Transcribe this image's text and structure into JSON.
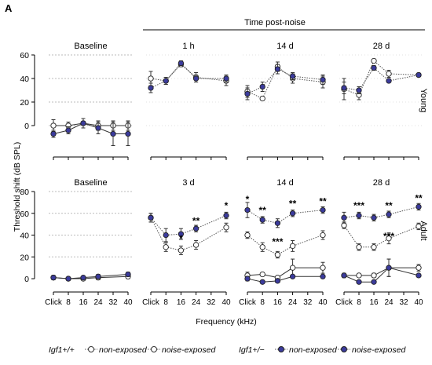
{
  "panel_label": "A",
  "header": "Time post-noise",
  "ylabel": "Threshold shift (dB SPL)",
  "xlabel": "Frequency (kHz)",
  "x_ticks": [
    "Click",
    "8",
    "16",
    "24",
    "32",
    "40"
  ],
  "legend": {
    "wt_genotype": "Igf1+/+",
    "het_genotype": "Igf1+/−",
    "non_exposed": "non-exposed",
    "noise_exposed": "noise-exposed"
  },
  "colors": {
    "het": "#3b3b9c",
    "wt": "#ffffff",
    "dotted_line": "#555555",
    "grid": "#bbbbbb"
  },
  "chart_data": [
    {
      "type": "line",
      "row_label": "Young",
      "ylim": [
        -20,
        60
      ],
      "yticks": [
        0,
        20,
        40,
        60
      ],
      "panels": [
        {
          "title": "Baseline",
          "x": [
            "Click",
            "8",
            "16",
            "24",
            "32",
            "40"
          ],
          "dashed_ref_lines": [
            0,
            20,
            40,
            60
          ],
          "series": [
            {
              "group": "wt-non-exposed",
              "x": [
                "Click",
                "8",
                "16",
                "24",
                "32",
                "40"
              ],
              "values": [
                0,
                0,
                2,
                0,
                0,
                0
              ],
              "err": [
                5,
                3,
                4,
                4,
                4,
                4
              ]
            },
            {
              "group": "het-non-exposed",
              "x": [
                "Click",
                "8",
                "16",
                "24",
                "32",
                "40"
              ],
              "values": [
                -7,
                -4,
                2,
                -2,
                -7,
                -7
              ],
              "err": [
                3,
                3,
                4,
                5,
                10,
                10
              ]
            }
          ]
        },
        {
          "title": "1 h",
          "x": [
            "Click",
            "8",
            "16",
            "24",
            "32",
            "40"
          ],
          "series": [
            {
              "group": "wt-noise-exposed",
              "x": [
                "Click",
                "8",
                "16",
                "24",
                "40"
              ],
              "values": [
                40,
                38,
                52,
                41,
                38
              ],
              "err": [
                6,
                3,
                2,
                4,
                4
              ]
            },
            {
              "group": "het-noise-exposed",
              "x": [
                "Click",
                "8",
                "16",
                "24",
                "40"
              ],
              "values": [
                32,
                38,
                53,
                40,
                40
              ],
              "err": [
                4,
                3,
                2,
                3,
                3
              ]
            }
          ]
        },
        {
          "title": "14 d",
          "x": [
            "Click",
            "8",
            "16",
            "24",
            "32",
            "40"
          ],
          "series": [
            {
              "group": "wt-noise-exposed",
              "x": [
                "Click",
                "8",
                "16",
                "24",
                "40"
              ],
              "values": [
                29,
                23,
                50,
                40,
                37
              ],
              "err": [
                5,
                1,
                4,
                4,
                5
              ]
            },
            {
              "group": "het-noise-exposed",
              "x": [
                "Click",
                "8",
                "16",
                "24",
                "40"
              ],
              "values": [
                27,
                33,
                48,
                42,
                39
              ],
              "err": [
                5,
                4,
                4,
                3,
                4
              ]
            }
          ]
        },
        {
          "title": "28 d",
          "x": [
            "Click",
            "8",
            "16",
            "24",
            "32",
            "40"
          ],
          "series": [
            {
              "group": "wt-noise-exposed",
              "x": [
                "Click",
                "8",
                "16",
                "24",
                "40"
              ],
              "values": [
                31,
                26,
                55,
                44,
                43
              ],
              "err": [
                9,
                4,
                1,
                3,
                1
              ]
            },
            {
              "group": "het-noise-exposed",
              "x": [
                "Click",
                "8",
                "16",
                "24",
                "40"
              ],
              "values": [
                32,
                30,
                49,
                38,
                43
              ],
              "err": [
                5,
                3,
                2,
                1,
                1
              ]
            }
          ]
        }
      ]
    },
    {
      "type": "line",
      "row_label": "Adult",
      "ylim": [
        -5,
        80
      ],
      "yticks": [
        0,
        20,
        40,
        60,
        80
      ],
      "panels": [
        {
          "title": "Baseline",
          "x": [
            "Click",
            "8",
            "16",
            "24",
            "32",
            "40"
          ],
          "dashed_ref_lines": [
            20,
            40,
            60,
            80
          ],
          "series": [
            {
              "group": "wt-non-exposed",
              "x": [
                "Click",
                "8",
                "16",
                "24",
                "40"
              ],
              "values": [
                1,
                0,
                0,
                1,
                2
              ],
              "err": [
                2,
                1,
                1,
                2,
                2
              ]
            },
            {
              "group": "het-non-exposed",
              "x": [
                "Click",
                "8",
                "16",
                "24",
                "40"
              ],
              "values": [
                1,
                0,
                1,
                2,
                4
              ],
              "err": [
                2,
                1,
                1,
                2,
                2
              ]
            }
          ]
        },
        {
          "title": "3 d",
          "x": [
            "Click",
            "8",
            "16",
            "24",
            "32",
            "40"
          ],
          "annotations": [
            {
              "x": "16",
              "y": 34,
              "text": "*"
            },
            {
              "x": "24",
              "y": 50,
              "text": "**"
            },
            {
              "x": "40",
              "y": 64,
              "text": "*"
            }
          ],
          "series": [
            {
              "group": "wt-noise-exposed",
              "x": [
                "Click",
                "8",
                "16",
                "24",
                "40"
              ],
              "values": [
                56,
                29,
                26,
                31,
                47
              ],
              "err": [
                4,
                4,
                4,
                4,
                4
              ]
            },
            {
              "group": "het-noise-exposed",
              "x": [
                "Click",
                "8",
                "16",
                "24",
                "40"
              ],
              "values": [
                56,
                40,
                41,
                46,
                58
              ],
              "err": [
                4,
                6,
                5,
                3,
                3
              ]
            }
          ]
        },
        {
          "title": "14 d",
          "x": [
            "Click",
            "8",
            "16",
            "24",
            "32",
            "40"
          ],
          "annotations": [
            {
              "x": "Click",
              "y": 70,
              "text": "*"
            },
            {
              "x": "8",
              "y": 60,
              "text": "**"
            },
            {
              "x": "16",
              "y": 31,
              "text": "***"
            },
            {
              "x": "24",
              "y": 66,
              "text": "**"
            },
            {
              "x": "40",
              "y": 68,
              "text": "**"
            }
          ],
          "series": [
            {
              "group": "wt-non-exposed",
              "x": [
                "Click",
                "8",
                "16",
                "24",
                "40"
              ],
              "values": [
                3,
                4,
                1,
                10,
                10
              ],
              "err": [
                3,
                1,
                1,
                8,
                5
              ]
            },
            {
              "group": "het-non-exposed",
              "x": [
                "Click",
                "8",
                "16",
                "24",
                "40"
              ],
              "values": [
                0,
                -3,
                -2,
                2,
                2
              ],
              "err": [
                2,
                1,
                1,
                1,
                1
              ]
            },
            {
              "group": "wt-noise-exposed",
              "x": [
                "Click",
                "8",
                "16",
                "24",
                "40"
              ],
              "values": [
                40,
                29,
                22,
                30,
                40
              ],
              "err": [
                3,
                4,
                3,
                5,
                4
              ]
            },
            {
              "group": "het-noise-exposed",
              "x": [
                "Click",
                "8",
                "16",
                "24",
                "40"
              ],
              "values": [
                63,
                54,
                51,
                60,
                63
              ],
              "err": [
                7,
                3,
                4,
                3,
                3
              ]
            }
          ]
        },
        {
          "title": "28 d",
          "x": [
            "Click",
            "8",
            "16",
            "24",
            "32",
            "40"
          ],
          "annotations": [
            {
              "x": "8",
              "y": 64,
              "text": "***"
            },
            {
              "x": "24",
              "y": 36,
              "text": "***"
            },
            {
              "x": "24",
              "y": 64,
              "text": "**"
            },
            {
              "x": "40",
              "y": 71,
              "text": "**"
            }
          ],
          "series": [
            {
              "group": "wt-non-exposed",
              "x": [
                "Click",
                "8",
                "16",
                "24",
                "40"
              ],
              "values": [
                3,
                3,
                3,
                10,
                10
              ],
              "err": [
                2,
                1,
                2,
                8,
                3
              ]
            },
            {
              "group": "het-non-exposed",
              "x": [
                "Click",
                "8",
                "16",
                "24",
                "40"
              ],
              "values": [
                3,
                -3,
                -3,
                10,
                3
              ],
              "err": [
                2,
                1,
                1,
                8,
                1
              ]
            },
            {
              "group": "wt-noise-exposed",
              "x": [
                "Click",
                "8",
                "16",
                "24",
                "40"
              ],
              "values": [
                49,
                29,
                29,
                37,
                48
              ],
              "err": [
                3,
                3,
                3,
                5,
                3
              ]
            },
            {
              "group": "het-noise-exposed",
              "x": [
                "Click",
                "8",
                "16",
                "24",
                "40"
              ],
              "values": [
                56,
                58,
                56,
                59,
                66
              ],
              "err": [
                5,
                3,
                3,
                3,
                3
              ]
            }
          ]
        }
      ]
    }
  ]
}
